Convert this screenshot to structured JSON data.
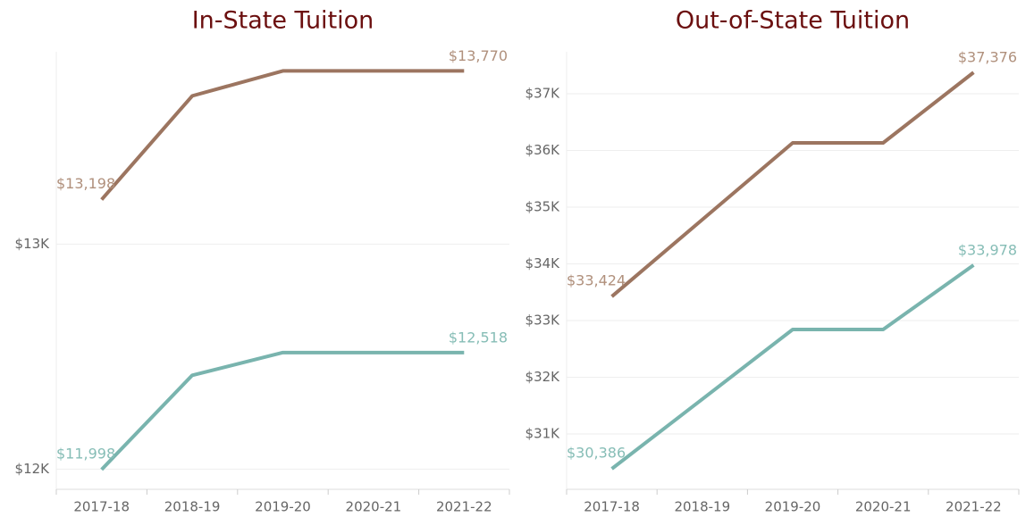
{
  "chart_data": [
    {
      "type": "line",
      "title": "In-State Tuition",
      "categories": [
        "2017-18",
        "2018-19",
        "2019-20",
        "2020-21",
        "2021-22"
      ],
      "series": [
        {
          "color": "#9c7560",
          "label_color": "#b0907c",
          "values": [
            13198,
            13659,
            13770,
            13770,
            13770
          ],
          "value_labels": [
            "$13,198",
            null,
            null,
            null,
            "$13,770"
          ]
        },
        {
          "color": "#79b4ae",
          "label_color": "#86bdb6",
          "values": [
            11998,
            12417,
            12518,
            12518,
            12518
          ],
          "value_labels": [
            "$11,998",
            null,
            null,
            null,
            "$12,518"
          ]
        }
      ],
      "ylim": [
        11910,
        13855
      ],
      "yticks": [
        {
          "value": 12000,
          "label": "$12K"
        },
        {
          "value": 13000,
          "label": "$13K"
        }
      ],
      "grid": true
    },
    {
      "type": "line",
      "title": "Out-of-State Tuition",
      "categories": [
        "2017-18",
        "2018-19",
        "2019-20",
        "2020-21",
        "2021-22"
      ],
      "series": [
        {
          "color": "#9c7560",
          "label_color": "#b0907c",
          "values": [
            33424,
            34780,
            36134,
            36134,
            37376
          ],
          "value_labels": [
            "$33,424",
            null,
            null,
            null,
            "$37,376"
          ]
        },
        {
          "color": "#79b4ae",
          "label_color": "#86bdb6",
          "values": [
            30386,
            31614,
            32843,
            32843,
            33978
          ],
          "value_labels": [
            "$30,386",
            null,
            null,
            null,
            "$33,978"
          ]
        }
      ],
      "ylim": [
        30024,
        37740
      ],
      "yticks": [
        {
          "value": 31000,
          "label": "$31K"
        },
        {
          "value": 32000,
          "label": "$32K"
        },
        {
          "value": 33000,
          "label": "$33K"
        },
        {
          "value": 34000,
          "label": "$34K"
        },
        {
          "value": 35000,
          "label": "$35K"
        },
        {
          "value": 36000,
          "label": "$36K"
        },
        {
          "value": 37000,
          "label": "$37K"
        }
      ],
      "grid": true
    }
  ]
}
